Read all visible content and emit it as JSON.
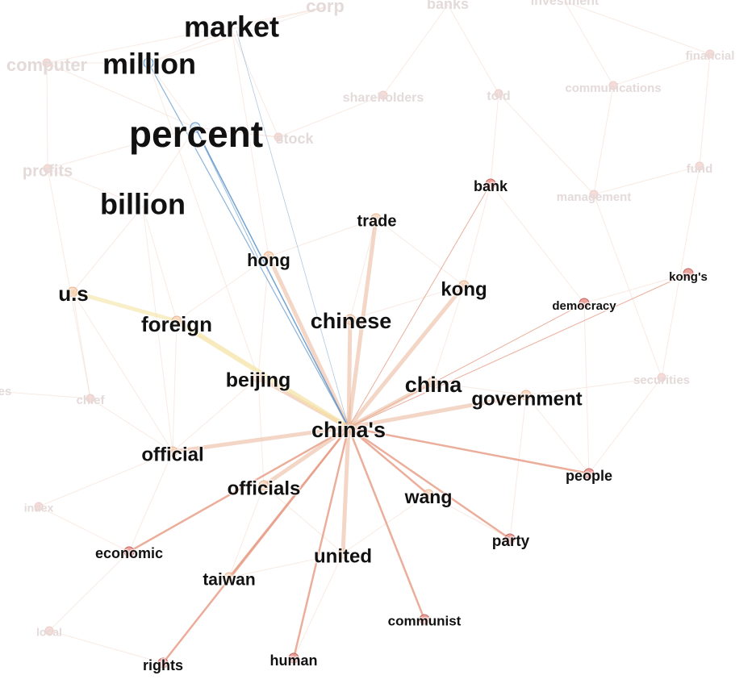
{
  "graph": {
    "colors": {
      "focus_edge": "#e8a08a",
      "focus_edge_strong": "#e9b497",
      "blue_edge": "#5b93c9",
      "yellow_edge": "#f3e3a3",
      "faded_edge": "#f3d9cc",
      "faded_label": "#e4dada",
      "label": "#111111",
      "node_red": "#e89a96",
      "node_peach": "#f3c7a6"
    },
    "focus_nodes": [
      {
        "id": "market",
        "label": "market",
        "emphasis": "large"
      },
      {
        "id": "million",
        "label": "million",
        "emphasis": "large"
      },
      {
        "id": "percent",
        "label": "percent",
        "emphasis": "largest"
      },
      {
        "id": "billion",
        "label": "billion",
        "emphasis": "large"
      },
      {
        "id": "bank",
        "label": "bank",
        "emphasis": "small"
      },
      {
        "id": "trade",
        "label": "trade",
        "emphasis": "small"
      },
      {
        "id": "hong",
        "label": "hong",
        "emphasis": "medium"
      },
      {
        "id": "kong",
        "label": "kong",
        "emphasis": "medium"
      },
      {
        "id": "kongs",
        "label": "kong's",
        "emphasis": "tiny"
      },
      {
        "id": "democracy",
        "label": "democracy",
        "emphasis": "tiny"
      },
      {
        "id": "us",
        "label": "u.s",
        "emphasis": "medium"
      },
      {
        "id": "foreign",
        "label": "foreign",
        "emphasis": "medium"
      },
      {
        "id": "chinese",
        "label": "chinese",
        "emphasis": "medium"
      },
      {
        "id": "beijing",
        "label": "beijing",
        "emphasis": "medium"
      },
      {
        "id": "china",
        "label": "china",
        "emphasis": "medium"
      },
      {
        "id": "government",
        "label": "government",
        "emphasis": "medium"
      },
      {
        "id": "chinas",
        "label": "china's",
        "emphasis": "medium"
      },
      {
        "id": "official",
        "label": "official",
        "emphasis": "medium"
      },
      {
        "id": "officials",
        "label": "officials",
        "emphasis": "medium"
      },
      {
        "id": "people",
        "label": "people",
        "emphasis": "small"
      },
      {
        "id": "wang",
        "label": "wang",
        "emphasis": "medium"
      },
      {
        "id": "party",
        "label": "party",
        "emphasis": "small"
      },
      {
        "id": "economic",
        "label": "economic",
        "emphasis": "small"
      },
      {
        "id": "united",
        "label": "united",
        "emphasis": "medium"
      },
      {
        "id": "taiwan",
        "label": "taiwan",
        "emphasis": "small"
      },
      {
        "id": "communist",
        "label": "communist",
        "emphasis": "tiny"
      },
      {
        "id": "rights",
        "label": "rights",
        "emphasis": "small"
      },
      {
        "id": "human",
        "label": "human",
        "emphasis": "small"
      }
    ],
    "faded_nodes": [
      {
        "id": "computer",
        "label": "computer"
      },
      {
        "id": "corp",
        "label": "corp"
      },
      {
        "id": "banks",
        "label": "banks"
      },
      {
        "id": "investment",
        "label": "investment"
      },
      {
        "id": "financial",
        "label": "financial"
      },
      {
        "id": "communications",
        "label": "communications"
      },
      {
        "id": "shareholders",
        "label": "shareholders"
      },
      {
        "id": "told",
        "label": "told"
      },
      {
        "id": "stock",
        "label": "stock"
      },
      {
        "id": "profits",
        "label": "profits"
      },
      {
        "id": "fund",
        "label": "fund"
      },
      {
        "id": "management",
        "label": "management"
      },
      {
        "id": "securities",
        "label": "securities"
      },
      {
        "id": "chief",
        "label": "chief"
      },
      {
        "id": "es",
        "label": "es"
      },
      {
        "id": "index",
        "label": "index"
      },
      {
        "id": "local",
        "label": "local"
      }
    ]
  }
}
